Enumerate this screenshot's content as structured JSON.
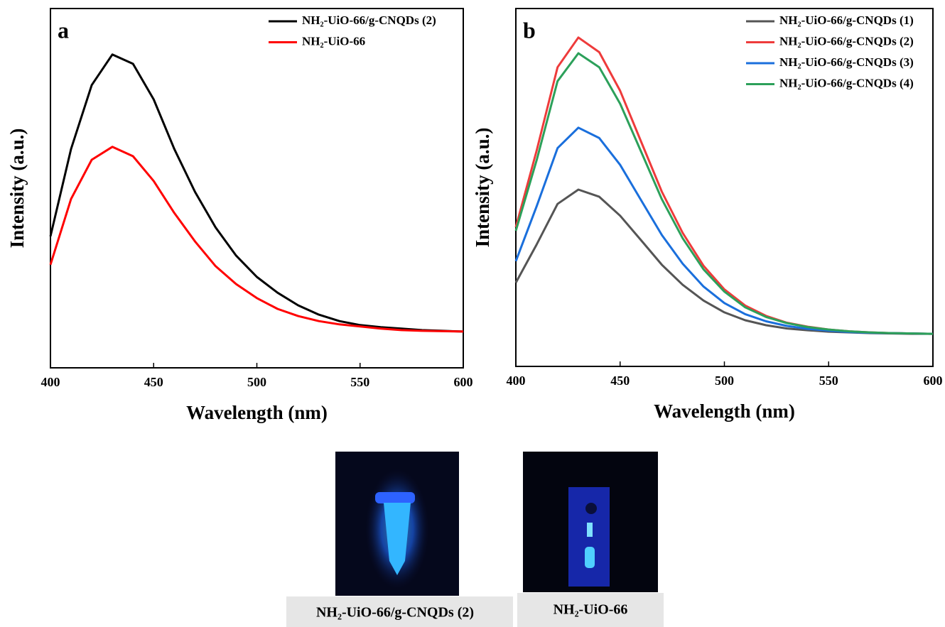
{
  "chart_data": [
    {
      "type": "line",
      "panel": "a",
      "xlabel": "Wavelength (nm)",
      "ylabel": "Intensity (a.u.)",
      "xlim": [
        400,
        600
      ],
      "xticks": [
        400,
        450,
        500,
        550,
        600
      ],
      "ylim": [
        0,
        100
      ],
      "legend": "upper right",
      "x": [
        400,
        410,
        420,
        430,
        440,
        450,
        460,
        470,
        480,
        490,
        500,
        510,
        520,
        530,
        540,
        550,
        560,
        570,
        580,
        590,
        600
      ],
      "series": [
        {
          "name": "NH₂-UiO-66/g-CNQDs (2)",
          "color": "#000000",
          "values": [
            36.6,
            60.9,
            78.7,
            87.2,
            84.6,
            74.7,
            60.9,
            49,
            39.1,
            31.2,
            25.3,
            20.9,
            17.4,
            14.8,
            13,
            11.9,
            11.3,
            10.9,
            10.5,
            10.3,
            10.1
          ]
        },
        {
          "name": "NH₂-UiO-66",
          "color": "#ff0000",
          "values": [
            28.7,
            47,
            57.9,
            61.5,
            58.9,
            52,
            43.1,
            35.2,
            28.3,
            23.3,
            19.4,
            16.4,
            14.4,
            13,
            12.1,
            11.5,
            10.9,
            10.5,
            10.3,
            10.2,
            10.1
          ]
        }
      ]
    },
    {
      "type": "line",
      "panel": "b",
      "xlabel": "Wavelength (nm)",
      "ylabel": "Intensity (a.u.)",
      "xlim": [
        400,
        600
      ],
      "xticks": [
        400,
        450,
        500,
        550,
        600
      ],
      "ylim": [
        0,
        100
      ],
      "legend": "upper right",
      "x": [
        400,
        410,
        420,
        430,
        440,
        450,
        460,
        470,
        480,
        490,
        500,
        510,
        520,
        530,
        540,
        550,
        560,
        570,
        580,
        590,
        600
      ],
      "series": [
        {
          "name": "NH₂-UiO-66/g-CNQDs (1)",
          "color": "#555555",
          "values": [
            23.4,
            34.1,
            45.4,
            49.4,
            47.4,
            42.1,
            35.3,
            28.4,
            22.8,
            18.4,
            15.1,
            12.9,
            11.5,
            10.6,
            10.1,
            9.7,
            9.5,
            9.3,
            9.2,
            9.1,
            9.1
          ]
        },
        {
          "name": "NH₂-UiO-66/g-CNQDs (2)",
          "color": "#ee3b3b",
          "values": [
            38.9,
            60.4,
            83.6,
            91.9,
            87.8,
            77,
            62.9,
            48.8,
            37.3,
            28.1,
            21.5,
            17,
            14.1,
            12.2,
            11.1,
            10.3,
            9.8,
            9.5,
            9.3,
            9.2,
            9.1
          ]
        },
        {
          "name": "NH₂-UiO-66/g-CNQDs (3)",
          "color": "#1a6fdc",
          "values": [
            29.4,
            44.8,
            61,
            66.7,
            63.8,
            56.3,
            46.5,
            36.7,
            28.7,
            22.3,
            17.7,
            14.6,
            12.6,
            11.3,
            10.5,
            10,
            9.6,
            9.4,
            9.3,
            9.2,
            9.1
          ]
        },
        {
          "name": "NH₂-UiO-66/g-CNQDs (4)",
          "color": "#2ca05a",
          "values": [
            37.9,
            57.7,
            79.7,
            87.5,
            83.6,
            73.4,
            60.1,
            46.7,
            35.8,
            27.1,
            20.9,
            16.5,
            13.8,
            12.1,
            11,
            10.3,
            9.8,
            9.5,
            9.3,
            9.2,
            9.1
          ]
        }
      ]
    }
  ],
  "images": [
    {
      "caption": "NH₂-UiO-66/g-CNQDs (2)"
    },
    {
      "caption": "NH₂-UiO-66"
    }
  ]
}
